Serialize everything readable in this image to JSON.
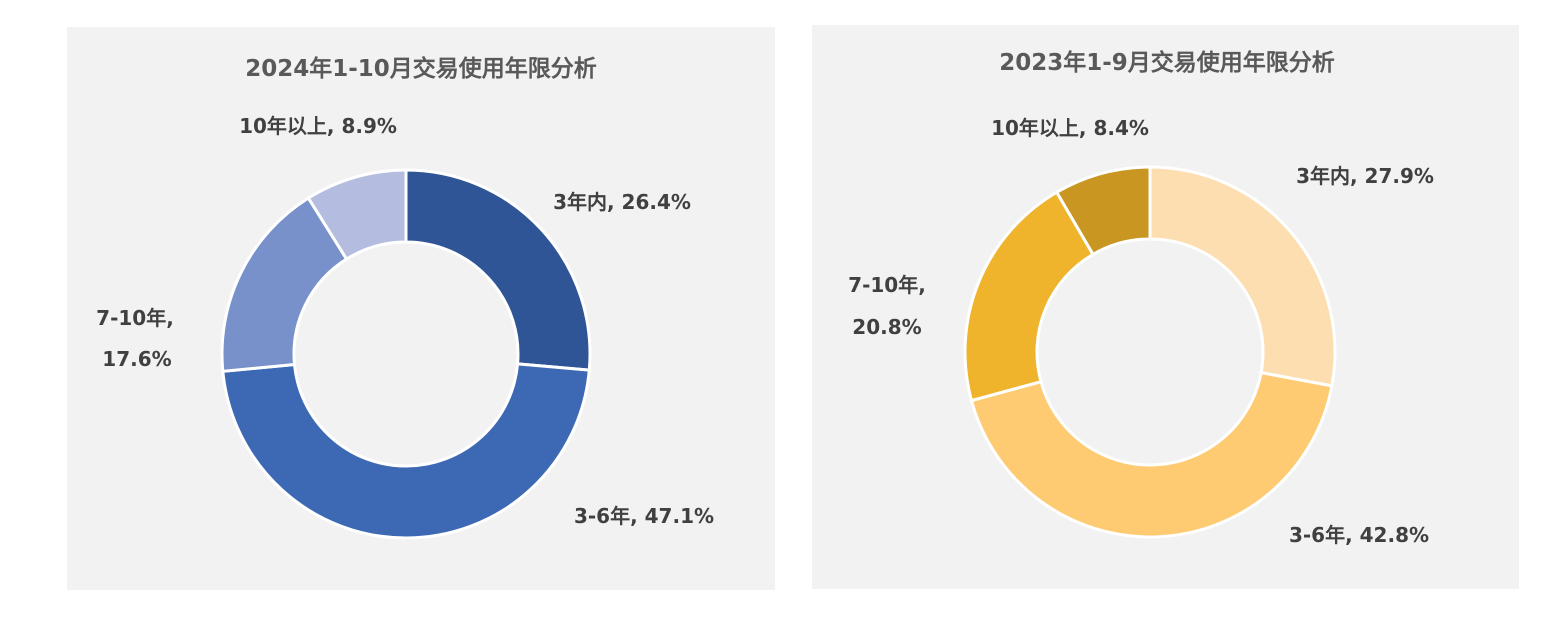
{
  "chart_data": [
    {
      "type": "pie",
      "donut": true,
      "title": "2024年1-10月交易使用年限分析",
      "legend": "none",
      "slices": [
        {
          "category": "3年内",
          "value": 26.4,
          "label": "3年内, 26.4%",
          "color": "#2f5597"
        },
        {
          "category": "3-6年",
          "value": 47.1,
          "label": "3-6年, 47.1%",
          "color": "#3d69b4"
        },
        {
          "category": "7-10年",
          "value": 17.6,
          "label": "7-10年,",
          "label2": "17.6%",
          "color": "#7891cb"
        },
        {
          "category": "10年以上",
          "value": 8.9,
          "label": "10年以上, 8.9%",
          "color": "#b4bddf"
        }
      ]
    },
    {
      "type": "pie",
      "donut": true,
      "title": "2023年1-9月交易使用年限分析",
      "legend": "none",
      "slices": [
        {
          "category": "3年内",
          "value": 27.9,
          "label": "3年内, 27.9%",
          "color": "#fddeb0"
        },
        {
          "category": "3-6年",
          "value": 42.8,
          "label": "3-6年, 42.8%",
          "color": "#fecb73"
        },
        {
          "category": "7-10年",
          "value": 20.8,
          "label": "7-10年,",
          "label2": "20.8%",
          "color": "#efb42c"
        },
        {
          "category": "10年以上",
          "value": 8.4,
          "label": "10年以上, 8.4%",
          "color": "#c89621"
        }
      ]
    }
  ]
}
